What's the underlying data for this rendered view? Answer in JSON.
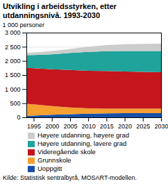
{
  "chart_data": {
    "type": "area",
    "stacked": true,
    "grid": true,
    "title": "Utvikling i arbeidsstyrken, etter utdanningsnivå. 1993-2030",
    "y_label": "1 000 personer",
    "source": "Kilde: Statistisk sentralbyrå, MOSART-modellen.",
    "x": [
      1993,
      1995,
      2000,
      2005,
      2010,
      2015,
      2020,
      2025,
      2030
    ],
    "xlim": [
      1993,
      2030
    ],
    "xticks": [
      1995,
      2000,
      2005,
      2010,
      2015,
      2020,
      2025,
      2030
    ],
    "ylim": [
      0,
      3000
    ],
    "yticks": [
      0,
      500,
      {
        "value": 1000,
        "label": "1 000"
      },
      {
        "value": 1500,
        "label": "1 500"
      },
      {
        "value": 2000,
        "label": "2 000"
      },
      {
        "value": 2500,
        "label": "2 500"
      },
      {
        "value": 3000,
        "label": "3 000"
      }
    ],
    "series": [
      {
        "name": "Uoppgitt",
        "color": "#1650a8",
        "values": [
          50,
          60,
          90,
          110,
          130,
          140,
          150,
          150,
          150
        ]
      },
      {
        "name": "Grunnskole",
        "color": "#f5a030",
        "values": [
          430,
          400,
          310,
          240,
          190,
          170,
          155,
          155,
          160
        ]
      },
      {
        "name": "Videregående skole",
        "color": "#c4161c",
        "values": [
          1270,
          1280,
          1300,
          1330,
          1330,
          1330,
          1315,
          1305,
          1290
        ]
      },
      {
        "name": "Høyere utdanning, lavere grad",
        "color": "#1fa39a",
        "values": [
          450,
          470,
          530,
          600,
          670,
          700,
          730,
          740,
          750
        ]
      },
      {
        "name": "Høyere utdanning, høyere grad",
        "color": "#cccccc",
        "values": [
          80,
          90,
          120,
          140,
          180,
          220,
          240,
          250,
          260
        ]
      }
    ]
  }
}
